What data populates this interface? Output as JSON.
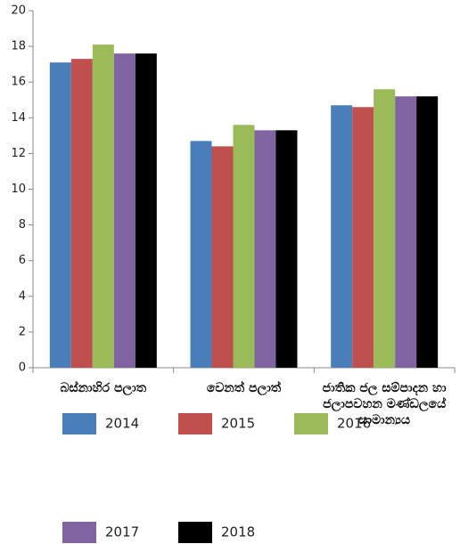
{
  "chart_data": {
    "type": "bar",
    "categories": [
      "බස්නාහිර පලාත",
      "වෙනත් පලාත්",
      "ජාතික ජල සම්පාදන හා ජලාපවහන මණ්ඩලයේ සාමාන්‍යය"
    ],
    "series": [
      {
        "name": "2014",
        "color": "#4a7ebb",
        "values": [
          17.1,
          12.7,
          14.7
        ]
      },
      {
        "name": "2015",
        "color": "#c0504d",
        "values": [
          17.3,
          12.4,
          14.6
        ]
      },
      {
        "name": "2016",
        "color": "#9bbb59",
        "values": [
          18.1,
          13.6,
          15.6
        ]
      },
      {
        "name": "2017",
        "color": "#8064a2",
        "values": [
          17.6,
          13.3,
          15.2
        ]
      },
      {
        "name": "2018",
        "color": "#000000",
        "values": [
          17.6,
          13.3,
          15.2
        ]
      }
    ],
    "ylim": [
      0,
      20
    ],
    "yticks": [
      0,
      2,
      4,
      6,
      8,
      10,
      12,
      14,
      16,
      18,
      20
    ],
    "grid": false
  }
}
